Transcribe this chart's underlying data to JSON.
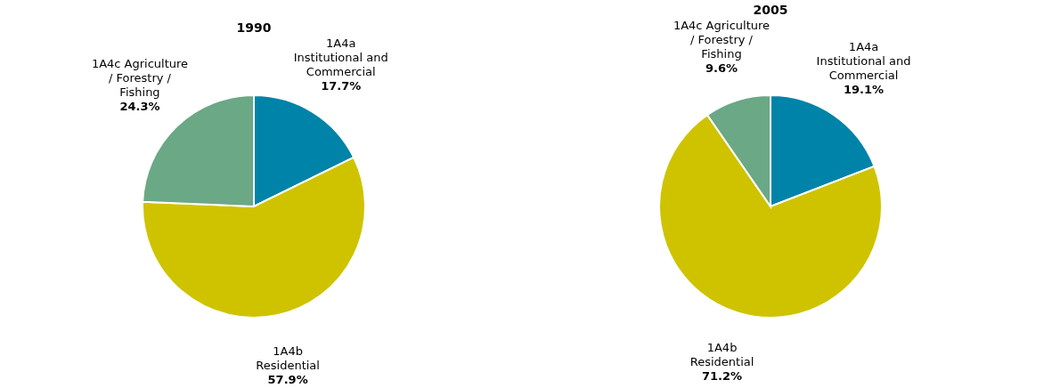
{
  "chart_data": [
    {
      "type": "pie",
      "title": "1990",
      "categories": [
        "1A4a\nInstitutional and\nCommercial",
        "1A4b\nResidential",
        "1A4c Agriculture\n/ Forestry /\nFishing"
      ],
      "values": [
        17.7,
        57.9,
        24.3
      ],
      "colors": [
        "#0083a8",
        "#cfc300",
        "#6aa886"
      ],
      "value_labels": [
        "17.7%",
        "57.9%",
        "24.3%"
      ]
    },
    {
      "type": "pie",
      "title": "2005",
      "categories": [
        "1A4a\nInstitutional and\nCommercial",
        "1A4b\nResidential",
        "1A4c Agriculture\n/ Forestry /\nFishing"
      ],
      "values": [
        19.1,
        71.2,
        9.6
      ],
      "colors": [
        "#0083a8",
        "#cfc300",
        "#6aa886"
      ],
      "value_labels": [
        "19.1%",
        "71.2%",
        "9.6%"
      ]
    }
  ]
}
